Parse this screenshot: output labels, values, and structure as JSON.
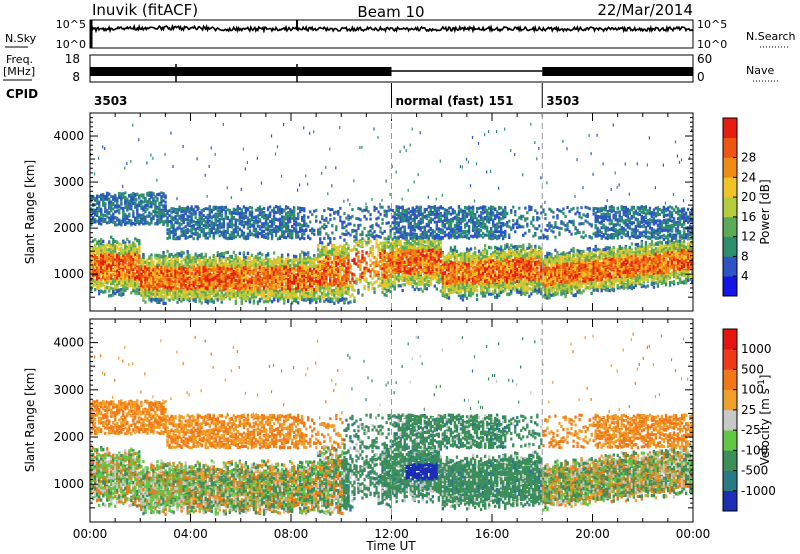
{
  "header": {
    "station": "Inuvik (fitACF)",
    "beam": "Beam 10",
    "date": "22/Mar/2014"
  },
  "noise_panel": {
    "left_label": "N.Sky",
    "right_label": "N.Search",
    "left_ticks": [
      "10^5",
      "10^0"
    ],
    "right_ticks": [
      "10^5",
      "10^0"
    ]
  },
  "freq_panel": {
    "left_label_line1": "Freq.",
    "left_label_line2": "[MHz]",
    "right_label": "Nave",
    "left_ticks": [
      "18",
      "8"
    ],
    "right_ticks": [
      "60",
      "0"
    ]
  },
  "cpid_panel": {
    "label": "CPID",
    "segments": [
      {
        "start_hour": 0,
        "text": "3503"
      },
      {
        "start_hour": 12,
        "text": "normal (fast) 151"
      },
      {
        "start_hour": 18,
        "text": "3503"
      }
    ]
  },
  "x_axis": {
    "label": "Time UT",
    "ticks": [
      "00:00",
      "04:00",
      "08:00",
      "12:00",
      "16:00",
      "20:00",
      "00:00"
    ]
  },
  "chart_data": [
    {
      "type": "heatmap",
      "name": "power",
      "ylabel": "Slant Range [km]",
      "xlim_hours": [
        0,
        24
      ],
      "ylim_km": [
        200,
        4500
      ],
      "yticks": [
        1000,
        2000,
        3000,
        4000
      ],
      "colorbar_label": "Power [dB]",
      "colorbar_ticks": [
        "4",
        "8",
        "12",
        "16",
        "20",
        "24",
        "28"
      ],
      "colorbar_colors": [
        "#1414e6",
        "#2d55c8",
        "#2e8f6e",
        "#5aaa58",
        "#b4cd3c",
        "#f0c328",
        "#f08a14",
        "#ee5512",
        "#e61e0f"
      ],
      "dashed_time_markers_hours": [
        12,
        18
      ]
    },
    {
      "type": "heatmap",
      "name": "velocity",
      "ylabel": "Slant Range [km]",
      "xlim_hours": [
        0,
        24
      ],
      "ylim_km": [
        200,
        4500
      ],
      "yticks": [
        1000,
        2000,
        3000,
        4000
      ],
      "colorbar_label": "Velocity [m s^-1]",
      "colorbar_ticks": [
        "1000",
        "500",
        "100",
        "25",
        "-25",
        "-100",
        "-500",
        "-1000"
      ],
      "colorbar_colors": [
        "#1a2fb4",
        "#2a7a86",
        "#3d8f5a",
        "#62c844",
        "#c8c8c8",
        "#f0a02a",
        "#f07818",
        "#ee3a18",
        "#e6140f"
      ],
      "dashed_time_markers_hours": [
        12,
        18
      ]
    }
  ]
}
